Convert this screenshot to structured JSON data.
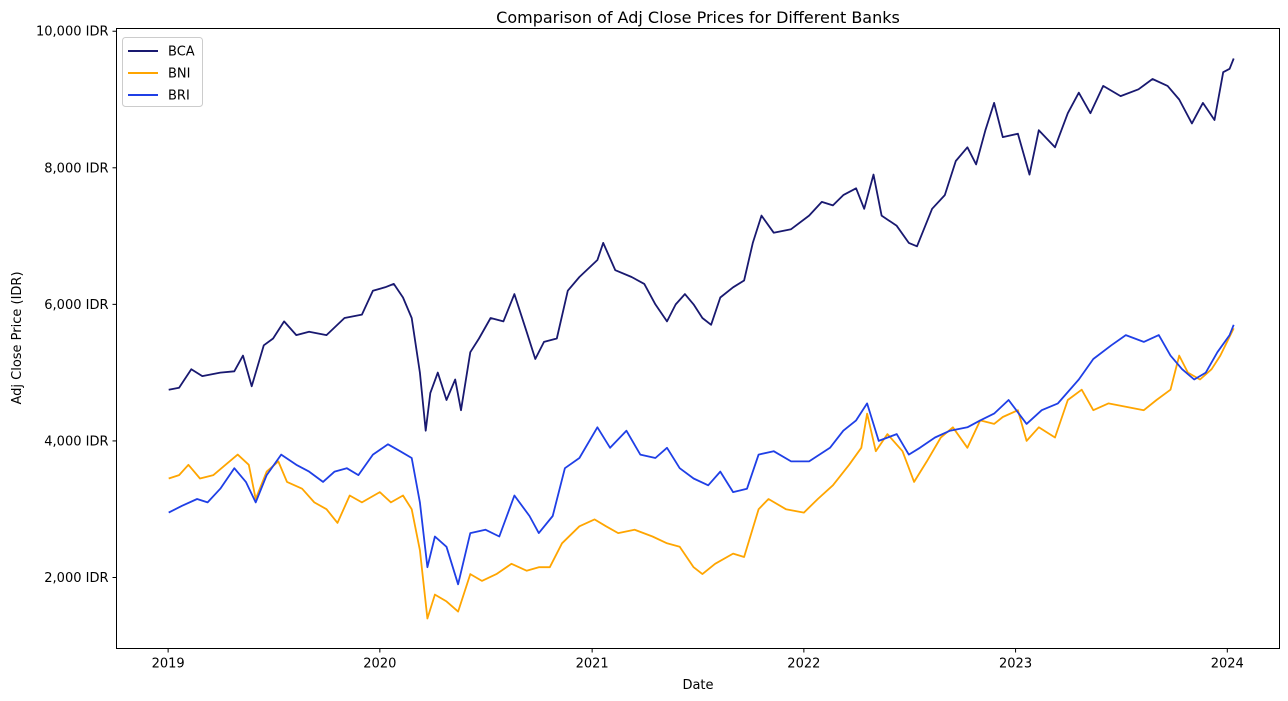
{
  "chart_data": {
    "type": "line",
    "title": "Comparison of Adj Close Prices for Different Banks",
    "xlabel": "Date",
    "ylabel": "Adj Close Price (IDR)",
    "xlim": [
      "2018-10-04",
      "2024-03-31"
    ],
    "ylim": [
      960,
      10040
    ],
    "x_ticks": [
      {
        "date": "2019-01-01",
        "label": "2019"
      },
      {
        "date": "2020-01-01",
        "label": "2020"
      },
      {
        "date": "2021-01-01",
        "label": "2021"
      },
      {
        "date": "2022-01-01",
        "label": "2022"
      },
      {
        "date": "2023-01-01",
        "label": "2023"
      },
      {
        "date": "2024-01-01",
        "label": "2024"
      }
    ],
    "y_ticks": [
      {
        "value": 2000,
        "label": "2,000 IDR"
      },
      {
        "value": 4000,
        "label": "4,000 IDR"
      },
      {
        "value": 6000,
        "label": "6,000 IDR"
      },
      {
        "value": 8000,
        "label": "8,000 IDR"
      },
      {
        "value": 10000,
        "label": "10,000 IDR"
      }
    ],
    "grid": false,
    "legend_position": "top-left",
    "series": [
      {
        "name": "BCA",
        "color": "#191970",
        "points": [
          [
            "2019-01-02",
            4750
          ],
          [
            "2019-01-20",
            4780
          ],
          [
            "2019-02-10",
            5050
          ],
          [
            "2019-03-01",
            4950
          ],
          [
            "2019-04-01",
            5000
          ],
          [
            "2019-04-25",
            5020
          ],
          [
            "2019-05-10",
            5250
          ],
          [
            "2019-05-25",
            4800
          ],
          [
            "2019-06-15",
            5400
          ],
          [
            "2019-07-01",
            5500
          ],
          [
            "2019-07-20",
            5750
          ],
          [
            "2019-08-10",
            5550
          ],
          [
            "2019-09-01",
            5600
          ],
          [
            "2019-10-01",
            5550
          ],
          [
            "2019-11-01",
            5800
          ],
          [
            "2019-12-01",
            5850
          ],
          [
            "2019-12-20",
            6200
          ],
          [
            "2020-01-10",
            6250
          ],
          [
            "2020-01-25",
            6300
          ],
          [
            "2020-02-10",
            6100
          ],
          [
            "2020-02-25",
            5800
          ],
          [
            "2020-03-10",
            5000
          ],
          [
            "2020-03-20",
            4150
          ],
          [
            "2020-03-28",
            4700
          ],
          [
            "2020-04-10",
            5000
          ],
          [
            "2020-04-25",
            4600
          ],
          [
            "2020-05-10",
            4900
          ],
          [
            "2020-05-20",
            4450
          ],
          [
            "2020-06-05",
            5300
          ],
          [
            "2020-06-20",
            5500
          ],
          [
            "2020-07-10",
            5800
          ],
          [
            "2020-08-01",
            5750
          ],
          [
            "2020-08-20",
            6150
          ],
          [
            "2020-09-10",
            5600
          ],
          [
            "2020-09-25",
            5200
          ],
          [
            "2020-10-10",
            5450
          ],
          [
            "2020-11-01",
            5500
          ],
          [
            "2020-11-20",
            6200
          ],
          [
            "2020-12-10",
            6400
          ],
          [
            "2021-01-10",
            6650
          ],
          [
            "2021-01-20",
            6900
          ],
          [
            "2021-02-10",
            6500
          ],
          [
            "2021-03-10",
            6400
          ],
          [
            "2021-04-01",
            6300
          ],
          [
            "2021-04-20",
            6000
          ],
          [
            "2021-05-10",
            5750
          ],
          [
            "2021-05-25",
            6000
          ],
          [
            "2021-06-10",
            6150
          ],
          [
            "2021-06-25",
            6000
          ],
          [
            "2021-07-10",
            5800
          ],
          [
            "2021-07-25",
            5700
          ],
          [
            "2021-08-10",
            6100
          ],
          [
            "2021-09-01",
            6250
          ],
          [
            "2021-09-20",
            6350
          ],
          [
            "2021-10-05",
            6900
          ],
          [
            "2021-10-20",
            7300
          ],
          [
            "2021-11-10",
            7050
          ],
          [
            "2021-12-10",
            7100
          ],
          [
            "2022-01-10",
            7300
          ],
          [
            "2022-02-01",
            7500
          ],
          [
            "2022-02-20",
            7450
          ],
          [
            "2022-03-10",
            7600
          ],
          [
            "2022-04-01",
            7700
          ],
          [
            "2022-04-15",
            7400
          ],
          [
            "2022-05-01",
            7900
          ],
          [
            "2022-05-15",
            7300
          ],
          [
            "2022-06-10",
            7150
          ],
          [
            "2022-07-01",
            6900
          ],
          [
            "2022-07-15",
            6850
          ],
          [
            "2022-08-10",
            7400
          ],
          [
            "2022-09-01",
            7600
          ],
          [
            "2022-09-20",
            8100
          ],
          [
            "2022-10-10",
            8300
          ],
          [
            "2022-10-25",
            8050
          ],
          [
            "2022-11-10",
            8550
          ],
          [
            "2022-11-25",
            8950
          ],
          [
            "2022-12-10",
            8450
          ],
          [
            "2023-01-05",
            8500
          ],
          [
            "2023-01-25",
            7900
          ],
          [
            "2023-02-10",
            8550
          ],
          [
            "2023-03-10",
            8300
          ],
          [
            "2023-04-01",
            8800
          ],
          [
            "2023-04-20",
            9100
          ],
          [
            "2023-05-10",
            8800
          ],
          [
            "2023-06-01",
            9200
          ],
          [
            "2023-07-01",
            9050
          ],
          [
            "2023-08-01",
            9150
          ],
          [
            "2023-08-25",
            9300
          ],
          [
            "2023-09-20",
            9200
          ],
          [
            "2023-10-10",
            9000
          ],
          [
            "2023-11-01",
            8650
          ],
          [
            "2023-11-20",
            8950
          ],
          [
            "2023-12-10",
            8700
          ],
          [
            "2023-12-25",
            9400
          ],
          [
            "2024-01-05",
            9450
          ],
          [
            "2024-01-12",
            9600
          ]
        ]
      },
      {
        "name": "BNI",
        "color": "#ffa500",
        "points": [
          [
            "2019-01-02",
            3450
          ],
          [
            "2019-01-20",
            3500
          ],
          [
            "2019-02-05",
            3650
          ],
          [
            "2019-02-25",
            3450
          ],
          [
            "2019-03-20",
            3500
          ],
          [
            "2019-04-10",
            3650
          ],
          [
            "2019-05-01",
            3800
          ],
          [
            "2019-05-20",
            3650
          ],
          [
            "2019-06-01",
            3150
          ],
          [
            "2019-06-20",
            3550
          ],
          [
            "2019-07-10",
            3700
          ],
          [
            "2019-07-25",
            3400
          ],
          [
            "2019-08-20",
            3300
          ],
          [
            "2019-09-10",
            3100
          ],
          [
            "2019-10-01",
            3000
          ],
          [
            "2019-10-20",
            2800
          ],
          [
            "2019-11-10",
            3200
          ],
          [
            "2019-12-01",
            3100
          ],
          [
            "2020-01-01",
            3250
          ],
          [
            "2020-01-20",
            3100
          ],
          [
            "2020-02-10",
            3200
          ],
          [
            "2020-02-25",
            3000
          ],
          [
            "2020-03-10",
            2400
          ],
          [
            "2020-03-23",
            1400
          ],
          [
            "2020-04-05",
            1750
          ],
          [
            "2020-04-25",
            1650
          ],
          [
            "2020-05-15",
            1500
          ],
          [
            "2020-06-05",
            2050
          ],
          [
            "2020-06-25",
            1950
          ],
          [
            "2020-07-20",
            2050
          ],
          [
            "2020-08-15",
            2200
          ],
          [
            "2020-09-10",
            2100
          ],
          [
            "2020-10-01",
            2150
          ],
          [
            "2020-10-20",
            2150
          ],
          [
            "2020-11-10",
            2500
          ],
          [
            "2020-12-10",
            2750
          ],
          [
            "2021-01-05",
            2850
          ],
          [
            "2021-01-25",
            2750
          ],
          [
            "2021-02-15",
            2650
          ],
          [
            "2021-03-15",
            2700
          ],
          [
            "2021-04-15",
            2600
          ],
          [
            "2021-05-10",
            2500
          ],
          [
            "2021-06-01",
            2450
          ],
          [
            "2021-06-25",
            2150
          ],
          [
            "2021-07-10",
            2050
          ],
          [
            "2021-08-01",
            2200
          ],
          [
            "2021-09-01",
            2350
          ],
          [
            "2021-09-20",
            2300
          ],
          [
            "2021-10-15",
            3000
          ],
          [
            "2021-11-01",
            3150
          ],
          [
            "2021-12-01",
            3000
          ],
          [
            "2022-01-01",
            2950
          ],
          [
            "2022-01-25",
            3150
          ],
          [
            "2022-02-20",
            3350
          ],
          [
            "2022-03-20",
            3650
          ],
          [
            "2022-04-10",
            3900
          ],
          [
            "2022-04-20",
            4400
          ],
          [
            "2022-05-05",
            3850
          ],
          [
            "2022-05-25",
            4100
          ],
          [
            "2022-06-20",
            3850
          ],
          [
            "2022-07-10",
            3400
          ],
          [
            "2022-08-01",
            3700
          ],
          [
            "2022-08-25",
            4050
          ],
          [
            "2022-09-15",
            4200
          ],
          [
            "2022-10-10",
            3900
          ],
          [
            "2022-11-01",
            4300
          ],
          [
            "2022-11-25",
            4250
          ],
          [
            "2022-12-10",
            4350
          ],
          [
            "2023-01-05",
            4450
          ],
          [
            "2023-01-20",
            4000
          ],
          [
            "2023-02-10",
            4200
          ],
          [
            "2023-03-10",
            4050
          ],
          [
            "2023-04-01",
            4600
          ],
          [
            "2023-04-25",
            4750
          ],
          [
            "2023-05-15",
            4450
          ],
          [
            "2023-06-10",
            4550
          ],
          [
            "2023-07-10",
            4500
          ],
          [
            "2023-08-10",
            4450
          ],
          [
            "2023-09-01",
            4600
          ],
          [
            "2023-09-25",
            4750
          ],
          [
            "2023-10-10",
            5250
          ],
          [
            "2023-10-25",
            5000
          ],
          [
            "2023-11-15",
            4900
          ],
          [
            "2023-12-05",
            5050
          ],
          [
            "2023-12-20",
            5250
          ],
          [
            "2024-01-12",
            5650
          ]
        ]
      },
      {
        "name": "BRI",
        "color": "#1f3fe6",
        "points": [
          [
            "2019-01-02",
            2950
          ],
          [
            "2019-01-25",
            3050
          ],
          [
            "2019-02-20",
            3150
          ],
          [
            "2019-03-10",
            3100
          ],
          [
            "2019-04-01",
            3300
          ],
          [
            "2019-04-25",
            3600
          ],
          [
            "2019-05-15",
            3400
          ],
          [
            "2019-06-01",
            3100
          ],
          [
            "2019-06-20",
            3500
          ],
          [
            "2019-07-15",
            3800
          ],
          [
            "2019-08-10",
            3650
          ],
          [
            "2019-09-01",
            3550
          ],
          [
            "2019-09-25",
            3400
          ],
          [
            "2019-10-15",
            3550
          ],
          [
            "2019-11-05",
            3600
          ],
          [
            "2019-11-25",
            3500
          ],
          [
            "2019-12-20",
            3800
          ],
          [
            "2020-01-15",
            3950
          ],
          [
            "2020-02-05",
            3850
          ],
          [
            "2020-02-25",
            3750
          ],
          [
            "2020-03-10",
            3100
          ],
          [
            "2020-03-23",
            2150
          ],
          [
            "2020-04-05",
            2600
          ],
          [
            "2020-04-25",
            2450
          ],
          [
            "2020-05-15",
            1900
          ],
          [
            "2020-06-05",
            2650
          ],
          [
            "2020-07-01",
            2700
          ],
          [
            "2020-07-25",
            2600
          ],
          [
            "2020-08-20",
            3200
          ],
          [
            "2020-09-15",
            2900
          ],
          [
            "2020-10-01",
            2650
          ],
          [
            "2020-10-25",
            2900
          ],
          [
            "2020-11-15",
            3600
          ],
          [
            "2020-12-10",
            3750
          ],
          [
            "2021-01-10",
            4200
          ],
          [
            "2021-02-01",
            3900
          ],
          [
            "2021-03-01",
            4150
          ],
          [
            "2021-03-25",
            3800
          ],
          [
            "2021-04-20",
            3750
          ],
          [
            "2021-05-10",
            3900
          ],
          [
            "2021-06-01",
            3600
          ],
          [
            "2021-06-25",
            3450
          ],
          [
            "2021-07-20",
            3350
          ],
          [
            "2021-08-10",
            3550
          ],
          [
            "2021-09-01",
            3250
          ],
          [
            "2021-09-25",
            3300
          ],
          [
            "2021-10-15",
            3800
          ],
          [
            "2021-11-10",
            3850
          ],
          [
            "2021-12-10",
            3700
          ],
          [
            "2022-01-10",
            3700
          ],
          [
            "2022-02-15",
            3900
          ],
          [
            "2022-03-10",
            4150
          ],
          [
            "2022-04-01",
            4300
          ],
          [
            "2022-04-20",
            4550
          ],
          [
            "2022-05-10",
            4000
          ],
          [
            "2022-06-10",
            4100
          ],
          [
            "2022-07-01",
            3800
          ],
          [
            "2022-07-20",
            3900
          ],
          [
            "2022-08-15",
            4050
          ],
          [
            "2022-09-10",
            4150
          ],
          [
            "2022-10-10",
            4200
          ],
          [
            "2022-11-01",
            4300
          ],
          [
            "2022-11-25",
            4400
          ],
          [
            "2022-12-20",
            4600
          ],
          [
            "2023-01-20",
            4250
          ],
          [
            "2023-02-15",
            4450
          ],
          [
            "2023-03-15",
            4550
          ],
          [
            "2023-04-20",
            4900
          ],
          [
            "2023-05-15",
            5200
          ],
          [
            "2023-06-15",
            5400
          ],
          [
            "2023-07-10",
            5550
          ],
          [
            "2023-08-10",
            5450
          ],
          [
            "2023-09-05",
            5550
          ],
          [
            "2023-09-25",
            5250
          ],
          [
            "2023-10-15",
            5050
          ],
          [
            "2023-11-05",
            4900
          ],
          [
            "2023-11-25",
            5000
          ],
          [
            "2023-12-15",
            5300
          ],
          [
            "2024-01-05",
            5550
          ],
          [
            "2024-01-12",
            5700
          ]
        ]
      }
    ]
  }
}
